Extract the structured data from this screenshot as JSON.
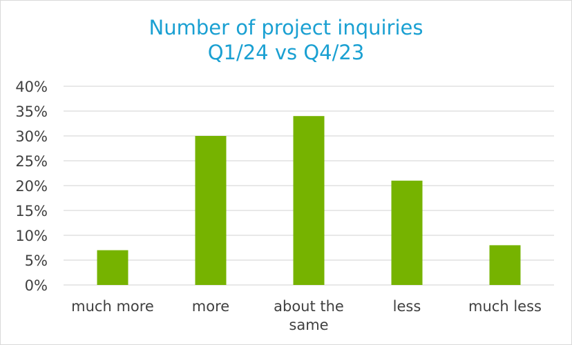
{
  "chart_data": {
    "type": "bar",
    "title_lines": [
      "Number of project inquiries",
      "Q1/24 vs Q4/23"
    ],
    "categories": [
      [
        "much more"
      ],
      [
        "more"
      ],
      [
        "about the",
        "same"
      ],
      [
        "less"
      ],
      [
        "much less"
      ]
    ],
    "values": [
      7,
      30,
      34,
      21,
      8
    ],
    "unit": "%",
    "ylim": [
      0,
      40
    ],
    "yticks": [
      0,
      5,
      10,
      15,
      20,
      25,
      30,
      35,
      40
    ],
    "ytick_labels": [
      "0%",
      "5%",
      "10%",
      "15%",
      "20%",
      "25%",
      "30%",
      "35%",
      "40%"
    ],
    "grid": true,
    "legend": "none",
    "colors": {
      "bar": "#76b300",
      "title": "#1aa0d2",
      "gridline": "#d9d9d9",
      "text": "#404040"
    }
  }
}
